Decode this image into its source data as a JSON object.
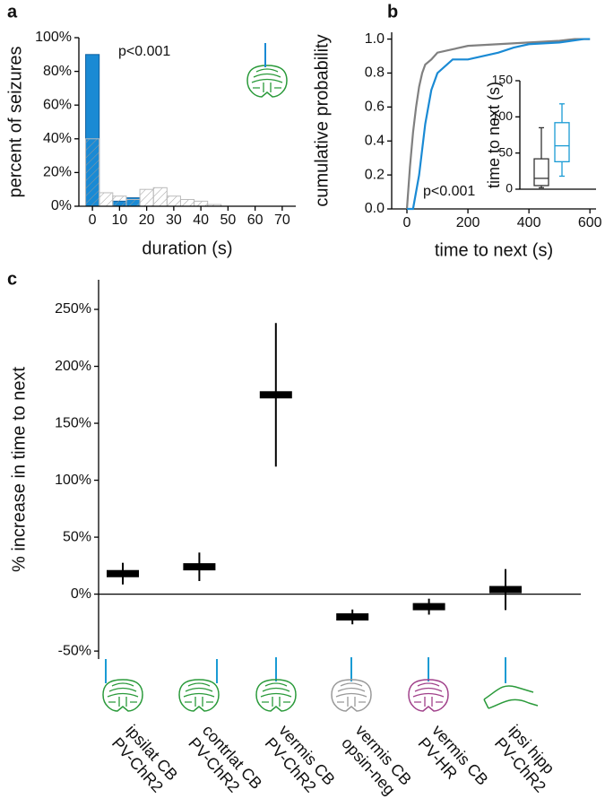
{
  "chart_data": [
    {
      "type": "histogram",
      "panel_label": "a",
      "ylabel": "percent of seizures",
      "xlabel": "duration (s)",
      "annotation": "p<0.001",
      "bins": [
        -2.5,
        2.5,
        7.5,
        12.5,
        17.5,
        22.5,
        27.5,
        32.5,
        37.5,
        42.5,
        47.5,
        52.5,
        57.5,
        62.5,
        67.5,
        72.5
      ],
      "series": [
        {
          "color": "#1a8ad4",
          "values": [
            90,
            0,
            3,
            5,
            0,
            0,
            0,
            0,
            0,
            0,
            0,
            0,
            0,
            0,
            0
          ]
        },
        {
          "color": "#999999",
          "hatch": true,
          "values": [
            40,
            8,
            6,
            4,
            10,
            11,
            6,
            4,
            3,
            1,
            0,
            0,
            0,
            0,
            0
          ]
        }
      ],
      "xlim": [
        -5,
        75
      ],
      "xticks": [
        0,
        10,
        20,
        30,
        40,
        50,
        60,
        70
      ],
      "ylim": [
        0,
        100
      ],
      "yticks": [
        {
          "value": 0,
          "label": "0%"
        },
        {
          "value": 20,
          "label": "20%"
        },
        {
          "value": 40,
          "label": "40%"
        },
        {
          "value": 60,
          "label": "60%"
        },
        {
          "value": 80,
          "label": "80%"
        },
        {
          "value": 100,
          "label": "100%"
        }
      ]
    },
    {
      "type": "line",
      "panel_label": "b",
      "ylabel": "cumulative probability",
      "xlabel": "time to next (s)",
      "annotation": "p<0.001",
      "series": [
        {
          "color": "#808080",
          "x": [
            0,
            10,
            20,
            30,
            40,
            50,
            60,
            80,
            100,
            150,
            200,
            300,
            400,
            500,
            550,
            600
          ],
          "values": [
            0,
            0.25,
            0.45,
            0.6,
            0.72,
            0.8,
            0.85,
            0.88,
            0.92,
            0.94,
            0.96,
            0.97,
            0.98,
            0.99,
            1,
            1
          ]
        },
        {
          "color": "#1a8ad4",
          "x": [
            0,
            20,
            40,
            60,
            80,
            100,
            150,
            200,
            300,
            350,
            400,
            500,
            580,
            600
          ],
          "values": [
            0,
            0,
            0.2,
            0.5,
            0.7,
            0.8,
            0.88,
            0.88,
            0.92,
            0.95,
            0.97,
            0.98,
            1,
            1
          ]
        }
      ],
      "xlim": [
        -50,
        620
      ],
      "xticks": [
        0,
        200,
        400,
        600
      ],
      "ylim": [
        0,
        1.04
      ],
      "yticks": [
        {
          "value": 0,
          "label": "0.0"
        },
        {
          "value": 0.2,
          "label": "0.2"
        },
        {
          "value": 0.4,
          "label": "0.4"
        },
        {
          "value": 0.6,
          "label": "0.6"
        },
        {
          "value": 0.8,
          "label": "0.8"
        },
        {
          "value": 1,
          "label": "1.0"
        }
      ]
    },
    {
      "type": "box",
      "ylabel": "time to next (s)",
      "series": [
        {
          "color": "#333333",
          "min": 2,
          "q1": 5,
          "median": 15,
          "q3": 42,
          "max": 85
        },
        {
          "color": "#1a9bd4",
          "min": 18,
          "q1": 38,
          "median": 60,
          "q3": 92,
          "max": 118
        }
      ],
      "ylim": [
        0,
        150
      ],
      "yticks": [
        0,
        50,
        100,
        150
      ]
    },
    {
      "type": "errorbar",
      "panel_label": "c",
      "ylabel": "% increase in time to next",
      "categories": [
        [
          "ipsilat CB",
          "PV-ChR2"
        ],
        [
          "contrlat CB",
          "PV-ChR2"
        ],
        [
          "vermis CB",
          "PV-ChR2"
        ],
        [
          "vermis CB",
          "opsin-neg"
        ],
        [
          "vermis CB",
          "PV-HR"
        ],
        [
          "ipsi hipp",
          "PV-ChR2"
        ]
      ],
      "values": [
        18,
        24,
        175,
        -20,
        -11,
        4
      ],
      "errors": [
        9.5,
        12.5,
        63,
        6.5,
        7,
        18
      ],
      "color": "#000000",
      "ylim": [
        -57,
        276
      ],
      "yticks": [
        {
          "value": -50,
          "label": "-50%"
        },
        {
          "value": 0,
          "label": "0%"
        },
        {
          "value": 50,
          "label": "50%"
        },
        {
          "value": 100,
          "label": "100%"
        },
        {
          "value": 150,
          "label": "150%"
        },
        {
          "value": 200,
          "label": "200%"
        },
        {
          "value": 250,
          "label": "250%"
        }
      ]
    }
  ]
}
